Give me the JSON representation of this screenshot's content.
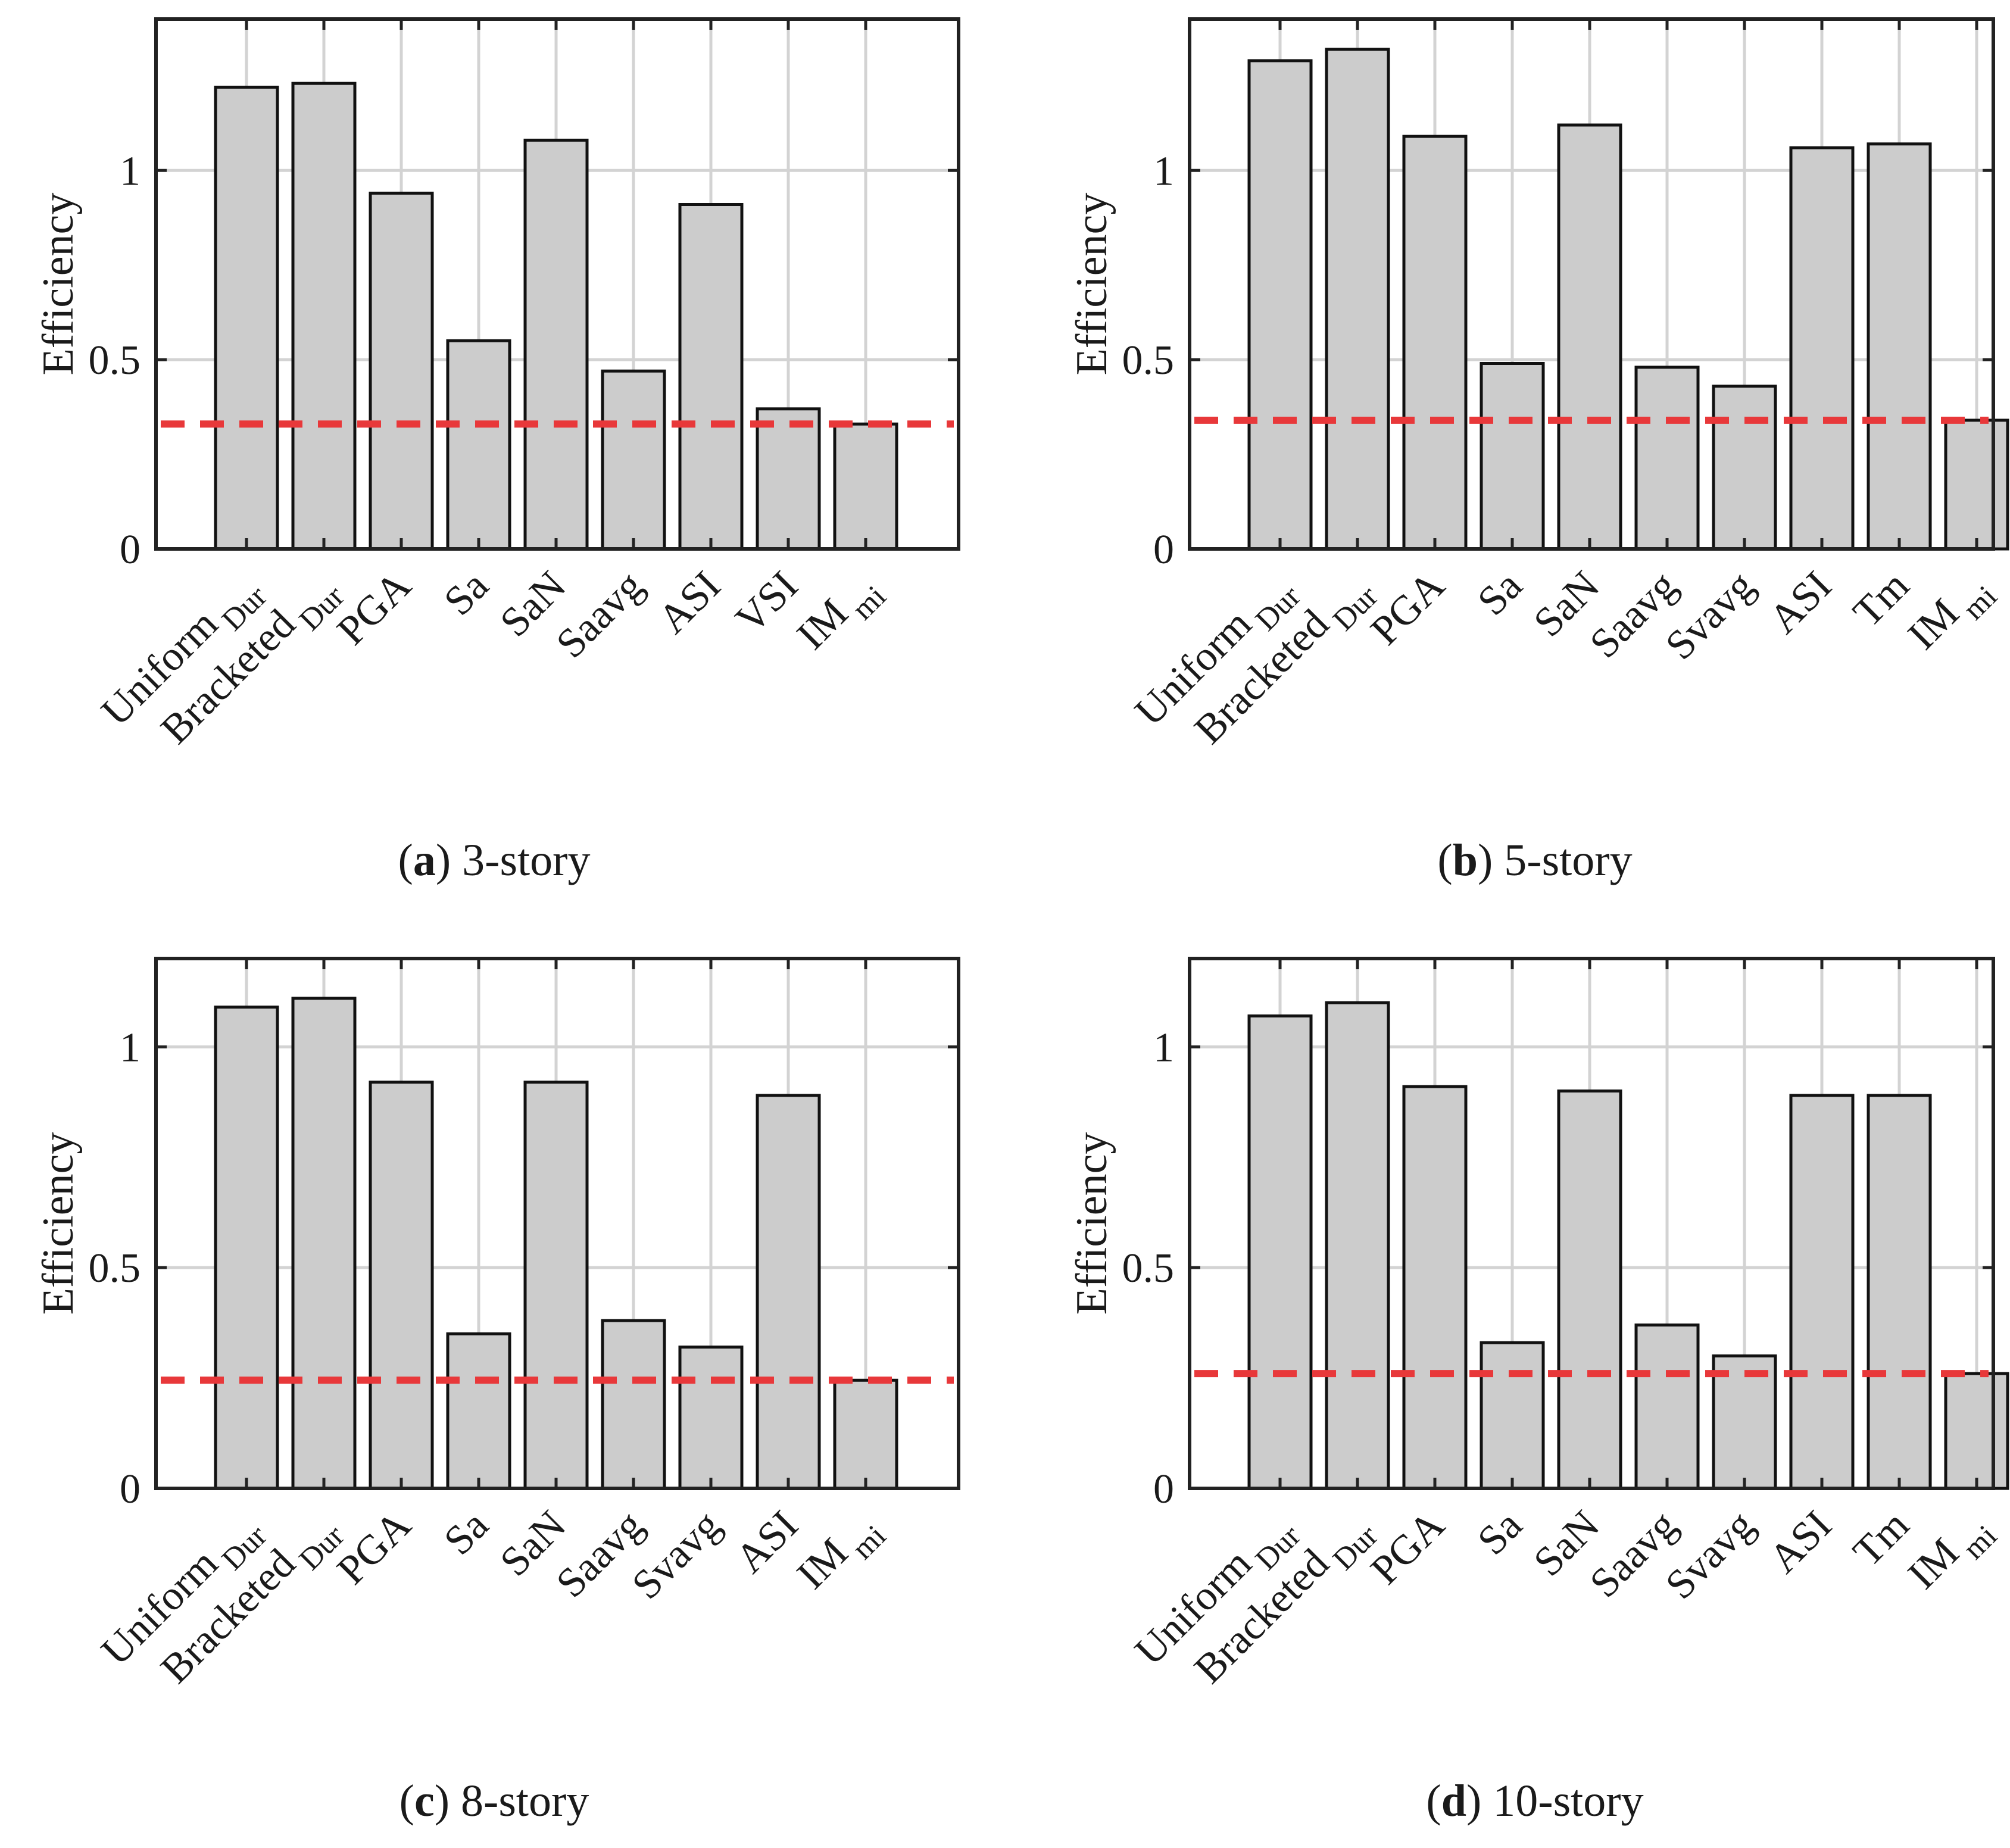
{
  "chart_data": [
    {
      "type": "bar",
      "caption_letter": "a",
      "caption_text": "3-story",
      "ylabel": "Efficiency",
      "ylim": [
        0,
        1.4
      ],
      "yticks": [
        0,
        0.5,
        1
      ],
      "ytick_labels": [
        "0",
        "0.5",
        "1"
      ],
      "grid": true,
      "categories": [
        "Uniform_Dur",
        "Bracketed_Dur",
        "PGA",
        "Sa",
        "SaN",
        "Saavg",
        "ASI",
        "VSI",
        "IM_mi"
      ],
      "category_labels": [
        {
          "main": "Uniform",
          "sub": "Dur"
        },
        {
          "main": "Bracketed",
          "sub": "Dur"
        },
        {
          "main": "PGA",
          "sub": ""
        },
        {
          "main": "Sa",
          "sub": ""
        },
        {
          "main": "SaN",
          "sub": ""
        },
        {
          "main": "Saavg",
          "sub": ""
        },
        {
          "main": "ASI",
          "sub": ""
        },
        {
          "main": "VSI",
          "sub": ""
        },
        {
          "main": "IM",
          "sub": "mi"
        }
      ],
      "values": [
        1.22,
        1.23,
        0.94,
        0.55,
        1.08,
        0.47,
        0.91,
        0.37,
        0.33
      ],
      "reference_line": 0.33,
      "reference_color": "#e8383a",
      "bar_color": "#cccccc"
    },
    {
      "type": "bar",
      "caption_letter": "b",
      "caption_text": "5-story",
      "ylabel": "Efficiency",
      "ylim": [
        0,
        1.4
      ],
      "yticks": [
        0,
        0.5,
        1
      ],
      "ytick_labels": [
        "0",
        "0.5",
        "1"
      ],
      "grid": true,
      "categories": [
        "Uniform_Dur",
        "Bracketed_Dur",
        "PGA",
        "Sa",
        "SaN",
        "Saavg",
        "Svavg",
        "ASI",
        "Tm",
        "IM_mi"
      ],
      "category_labels": [
        {
          "main": "Uniform",
          "sub": "Dur"
        },
        {
          "main": "Bracketed",
          "sub": "Dur"
        },
        {
          "main": "PGA",
          "sub": ""
        },
        {
          "main": "Sa",
          "sub": ""
        },
        {
          "main": "SaN",
          "sub": ""
        },
        {
          "main": "Saavg",
          "sub": ""
        },
        {
          "main": "Svavg",
          "sub": ""
        },
        {
          "main": "ASI",
          "sub": ""
        },
        {
          "main": "Tm",
          "sub": ""
        },
        {
          "main": "IM",
          "sub": "mi"
        }
      ],
      "values": [
        1.29,
        1.32,
        1.09,
        0.49,
        1.12,
        0.48,
        0.43,
        1.06,
        1.07,
        0.34
      ],
      "reference_line": 0.34,
      "reference_color": "#e8383a",
      "bar_color": "#cccccc"
    },
    {
      "type": "bar",
      "caption_letter": "c",
      "caption_text": "8-story",
      "ylabel": "Efficiency",
      "ylim": [
        0,
        1.2
      ],
      "yticks": [
        0,
        0.5,
        1
      ],
      "ytick_labels": [
        "0",
        "0.5",
        "1"
      ],
      "grid": true,
      "categories": [
        "Uniform_Dur",
        "Bracketed_Dur",
        "PGA",
        "Sa",
        "SaN",
        "Saavg",
        "Svavg",
        "ASI",
        "IM_mi"
      ],
      "category_labels": [
        {
          "main": "Uniform",
          "sub": "Dur"
        },
        {
          "main": "Bracketed",
          "sub": "Dur"
        },
        {
          "main": "PGA",
          "sub": ""
        },
        {
          "main": "Sa",
          "sub": ""
        },
        {
          "main": "SaN",
          "sub": ""
        },
        {
          "main": "Saavg",
          "sub": ""
        },
        {
          "main": "Svavg",
          "sub": ""
        },
        {
          "main": "ASI",
          "sub": ""
        },
        {
          "main": "IM",
          "sub": "mi"
        }
      ],
      "values": [
        1.09,
        1.11,
        0.92,
        0.35,
        0.92,
        0.38,
        0.32,
        0.89,
        0.245
      ],
      "reference_line": 0.245,
      "reference_color": "#e8383a",
      "bar_color": "#cccccc"
    },
    {
      "type": "bar",
      "caption_letter": "d",
      "caption_text": "10-story",
      "ylabel": "Efficiency",
      "ylim": [
        0,
        1.2
      ],
      "yticks": [
        0,
        0.5,
        1
      ],
      "ytick_labels": [
        "0",
        "0.5",
        "1"
      ],
      "grid": true,
      "categories": [
        "Uniform_Dur",
        "Bracketed_Dur",
        "PGA",
        "Sa",
        "SaN",
        "Saavg",
        "Svavg",
        "ASI",
        "Tm",
        "IM_mi"
      ],
      "category_labels": [
        {
          "main": "Uniform",
          "sub": "Dur"
        },
        {
          "main": "Bracketed",
          "sub": "Dur"
        },
        {
          "main": "PGA",
          "sub": ""
        },
        {
          "main": "Sa",
          "sub": ""
        },
        {
          "main": "SaN",
          "sub": ""
        },
        {
          "main": "Saavg",
          "sub": ""
        },
        {
          "main": "Svavg",
          "sub": ""
        },
        {
          "main": "ASI",
          "sub": ""
        },
        {
          "main": "Tm",
          "sub": ""
        },
        {
          "main": "IM",
          "sub": "mi"
        }
      ],
      "values": [
        1.07,
        1.1,
        0.91,
        0.33,
        0.9,
        0.37,
        0.3,
        0.89,
        0.89,
        0.26
      ],
      "reference_line": 0.26,
      "reference_color": "#e8383a",
      "bar_color": "#cccccc"
    }
  ]
}
